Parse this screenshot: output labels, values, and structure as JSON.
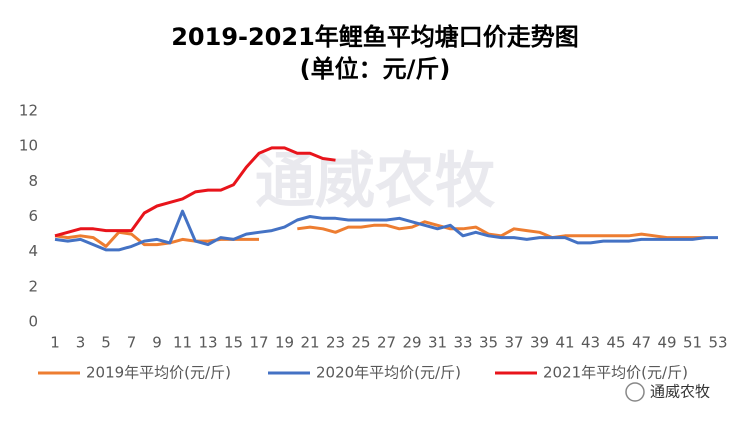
{
  "chart_data": {
    "type": "line",
    "title": "2019-2021年鲤鱼平均塘口价走势图",
    "subtitle": "(单位：元/斤)",
    "watermark": "通威农牧",
    "logo_text": "通威农牧",
    "categories": [
      1,
      null,
      3,
      null,
      5,
      null,
      7,
      null,
      9,
      null,
      11,
      null,
      13,
      null,
      15,
      null,
      17,
      null,
      19,
      null,
      21,
      null,
      23,
      null,
      25,
      null,
      27,
      null,
      29,
      null,
      31,
      null,
      33,
      null,
      35,
      null,
      37,
      null,
      39,
      null,
      41,
      null,
      43,
      null,
      45,
      null,
      47,
      null,
      49,
      null,
      51,
      null,
      53
    ],
    "ylim": [
      0,
      12
    ],
    "yticks": [
      0,
      2,
      4,
      6,
      8,
      10,
      12
    ],
    "grid": false,
    "legend": "bottom",
    "series": [
      {
        "name": "2019年平均价(元/斤)",
        "color": "#ED7D31",
        "values": [
          4.9,
          4.8,
          4.9,
          4.8,
          4.3,
          5.1,
          5.0,
          4.4,
          4.4,
          4.5,
          4.7,
          4.6,
          4.6,
          4.7,
          4.7,
          4.7,
          4.7,
          null,
          null,
          5.3,
          5.4,
          5.3,
          5.1,
          5.4,
          5.4,
          5.5,
          5.5,
          5.3,
          5.4,
          5.7,
          5.5,
          5.3,
          5.3,
          5.4,
          5.0,
          4.9,
          5.3,
          5.2,
          5.1,
          4.8,
          4.9,
          4.9,
          4.9,
          4.9,
          4.9,
          4.9,
          5.0,
          4.9,
          4.8,
          4.8,
          4.8,
          4.8,
          null
        ]
      },
      {
        "name": "2020年平均价(元/斤)",
        "color": "#4472C4",
        "values": [
          4.7,
          4.6,
          4.7,
          4.4,
          4.1,
          4.1,
          4.3,
          4.6,
          4.7,
          4.5,
          6.3,
          4.6,
          4.4,
          4.8,
          4.7,
          5.0,
          5.1,
          5.2,
          5.4,
          5.8,
          6.0,
          5.9,
          5.9,
          5.8,
          5.8,
          5.8,
          5.8,
          5.9,
          5.7,
          5.5,
          5.3,
          5.5,
          4.9,
          5.1,
          4.9,
          4.8,
          4.8,
          4.7,
          4.8,
          4.8,
          4.8,
          4.5,
          4.5,
          4.6,
          4.6,
          4.6,
          4.7,
          4.7,
          4.7,
          4.7,
          4.7,
          4.8,
          4.8
        ]
      },
      {
        "name": "2021年平均价(元/斤)",
        "color": "#E8141B",
        "values": [
          4.9,
          5.1,
          5.3,
          5.3,
          5.2,
          5.2,
          5.2,
          6.2,
          6.6,
          6.8,
          7.0,
          7.4,
          7.5,
          7.5,
          7.8,
          8.8,
          9.6,
          9.9,
          9.9,
          9.6,
          9.6,
          9.3,
          9.2,
          null,
          null,
          null,
          null,
          null,
          null,
          null,
          null,
          null,
          null,
          null,
          null,
          null,
          null,
          null,
          null,
          null,
          null,
          null,
          null,
          null,
          null,
          null,
          null,
          null,
          null,
          null,
          null,
          null,
          null
        ]
      }
    ]
  }
}
